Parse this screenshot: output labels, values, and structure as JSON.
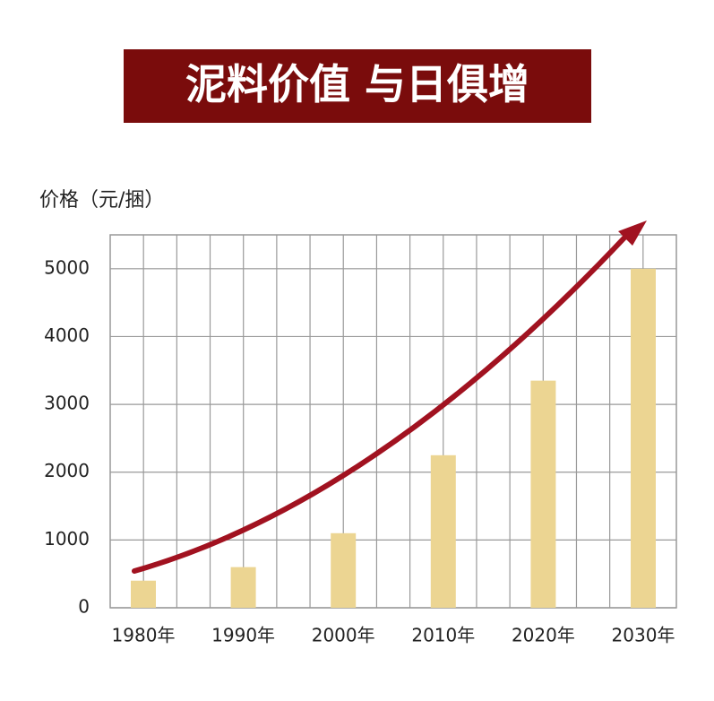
{
  "chart_data": {
    "type": "bar",
    "title": "泥料价值 与日俱增",
    "y_label": "价格（元/捆）",
    "categories": [
      "1980年",
      "1990年",
      "2000年",
      "2010年",
      "2020年",
      "2030年"
    ],
    "values": [
      400,
      600,
      1100,
      2250,
      3350,
      5000
    ],
    "color": "#ecd592",
    "ylim": [
      0,
      5500
    ],
    "yticks": [
      0,
      1000,
      2000,
      3000,
      4000,
      5000
    ],
    "grid": true
  }
}
